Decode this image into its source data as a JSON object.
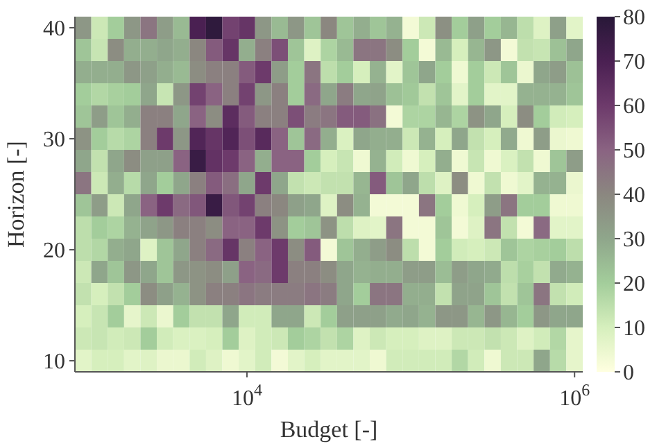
{
  "chart_data": {
    "type": "heatmap",
    "xlabel": "Budget [-]",
    "ylabel": "Horizon [-]",
    "log": "x",
    "x": [
      1000,
      1259,
      1585,
      1995,
      2512,
      3162,
      3981,
      5012,
      6310,
      7943,
      10000,
      12589,
      15849,
      19953,
      25119,
      31623,
      39811,
      50119,
      63096,
      79433,
      100000,
      125893,
      158489,
      199526,
      251189,
      316228,
      398107,
      501187,
      630957,
      794328,
      1000000
    ],
    "y": [
      40,
      38,
      36,
      34,
      32,
      30,
      28,
      26,
      24,
      22,
      20,
      18,
      16,
      14,
      12,
      10
    ],
    "xlim": [
      891,
      1122018
    ],
    "xticks": [
      {
        "value": 10000,
        "label": "10$^{4}$"
      },
      {
        "value": 1000000,
        "label": "10$^{6}$"
      }
    ],
    "ylim": [
      9,
      41
    ],
    "yticks": [
      10,
      20,
      30,
      40
    ],
    "clim": [
      0,
      80
    ],
    "cticks": [
      0,
      10,
      20,
      30,
      40,
      50,
      60,
      70,
      80
    ],
    "cells": [
      [
        35,
        12,
        20,
        35,
        45,
        33,
        25,
        70,
        78,
        58,
        62,
        35,
        25,
        35,
        22,
        40,
        22,
        28,
        22,
        27,
        3,
        12,
        37,
        20,
        32,
        20,
        26,
        15,
        8,
        32,
        7
      ],
      [
        22,
        13,
        38,
        28,
        28,
        30,
        28,
        40,
        52,
        62,
        28,
        42,
        55,
        22,
        8,
        18,
        25,
        45,
        45,
        38,
        20,
        3,
        25,
        10,
        26,
        35,
        3,
        14,
        13,
        23,
        30
      ],
      [
        28,
        28,
        28,
        35,
        32,
        28,
        25,
        38,
        42,
        42,
        52,
        60,
        33,
        20,
        45,
        15,
        20,
        10,
        27,
        7,
        22,
        30,
        20,
        4,
        20,
        12,
        22,
        5,
        30,
        33,
        23
      ],
      [
        20,
        17,
        19,
        20,
        30,
        13,
        35,
        58,
        50,
        42,
        58,
        35,
        42,
        20,
        48,
        30,
        43,
        30,
        31,
        23,
        21,
        14,
        22,
        7,
        20,
        7,
        7,
        27,
        27,
        27,
        22
      ],
      [
        22,
        33,
        22,
        28,
        42,
        42,
        30,
        50,
        38,
        65,
        52,
        42,
        42,
        55,
        43,
        45,
        52,
        52,
        46,
        3,
        18,
        18,
        26,
        18,
        36,
        30,
        10,
        38,
        20,
        11,
        10
      ],
      [
        36,
        20,
        16,
        18,
        42,
        60,
        35,
        68,
        62,
        68,
        55,
        66,
        50,
        22,
        48,
        28,
        9,
        30,
        28,
        28,
        12,
        27,
        10,
        30,
        14,
        10,
        29,
        4,
        33,
        5,
        4
      ],
      [
        30,
        14,
        30,
        38,
        32,
        32,
        50,
        75,
        63,
        60,
        50,
        28,
        50,
        50,
        20,
        10,
        13,
        4,
        27,
        11,
        4,
        10,
        28,
        4,
        13,
        4,
        9,
        14,
        4,
        22,
        33
      ],
      [
        45,
        12,
        28,
        16,
        30,
        20,
        30,
        42,
        52,
        47,
        30,
        60,
        30,
        14,
        12,
        14,
        14,
        26,
        52,
        22,
        30,
        15,
        8,
        38,
        4,
        14,
        4,
        7,
        27,
        27,
        5
      ],
      [
        22,
        33,
        12,
        30,
        50,
        60,
        48,
        53,
        75,
        53,
        58,
        42,
        40,
        32,
        30,
        8,
        38,
        27,
        3,
        3,
        3,
        45,
        20,
        4,
        10,
        33,
        45,
        20,
        20,
        4,
        4
      ],
      [
        15,
        20,
        18,
        27,
        31,
        35,
        42,
        42,
        38,
        50,
        50,
        60,
        36,
        20,
        22,
        36,
        15,
        8,
        7,
        45,
        3,
        3,
        22,
        3,
        8,
        45,
        14,
        3,
        48,
        7,
        7
      ],
      [
        15,
        17,
        28,
        30,
        8,
        22,
        30,
        42,
        48,
        62,
        42,
        50,
        60,
        38,
        52,
        3,
        22,
        28,
        33,
        38,
        15,
        3,
        20,
        11,
        10,
        12,
        22,
        18,
        19,
        20,
        15
      ],
      [
        12,
        30,
        22,
        35,
        30,
        22,
        35,
        36,
        38,
        32,
        50,
        48,
        60,
        42,
        42,
        38,
        30,
        27,
        28,
        28,
        33,
        33,
        24,
        33,
        30,
        29,
        15,
        19,
        14,
        29,
        27
      ],
      [
        14,
        10,
        14,
        20,
        38,
        32,
        27,
        36,
        42,
        42,
        45,
        43,
        43,
        43,
        45,
        43,
        30,
        20,
        45,
        45,
        28,
        28,
        14,
        31,
        31,
        22,
        14,
        22,
        45,
        14,
        11
      ],
      [
        10,
        13,
        20,
        6,
        12,
        5,
        20,
        14,
        14,
        30,
        11,
        11,
        30,
        30,
        12,
        20,
        32,
        32,
        32,
        29,
        30,
        27,
        35,
        35,
        26,
        35,
        26,
        20,
        35,
        30,
        30
      ],
      [
        12,
        13,
        11,
        12,
        20,
        11,
        9,
        9,
        10,
        20,
        8,
        11,
        12,
        20,
        18,
        14,
        18,
        8,
        12,
        10,
        10,
        8,
        8,
        12,
        12,
        14,
        12,
        8,
        11,
        17,
        6
      ],
      [
        7,
        10,
        10,
        7,
        8,
        5,
        5,
        11,
        8,
        4,
        7,
        11,
        3,
        7,
        10,
        7,
        7,
        7,
        4,
        11,
        11,
        11,
        11,
        17,
        11,
        4,
        12,
        12,
        30,
        16,
        6
      ]
    ]
  }
}
